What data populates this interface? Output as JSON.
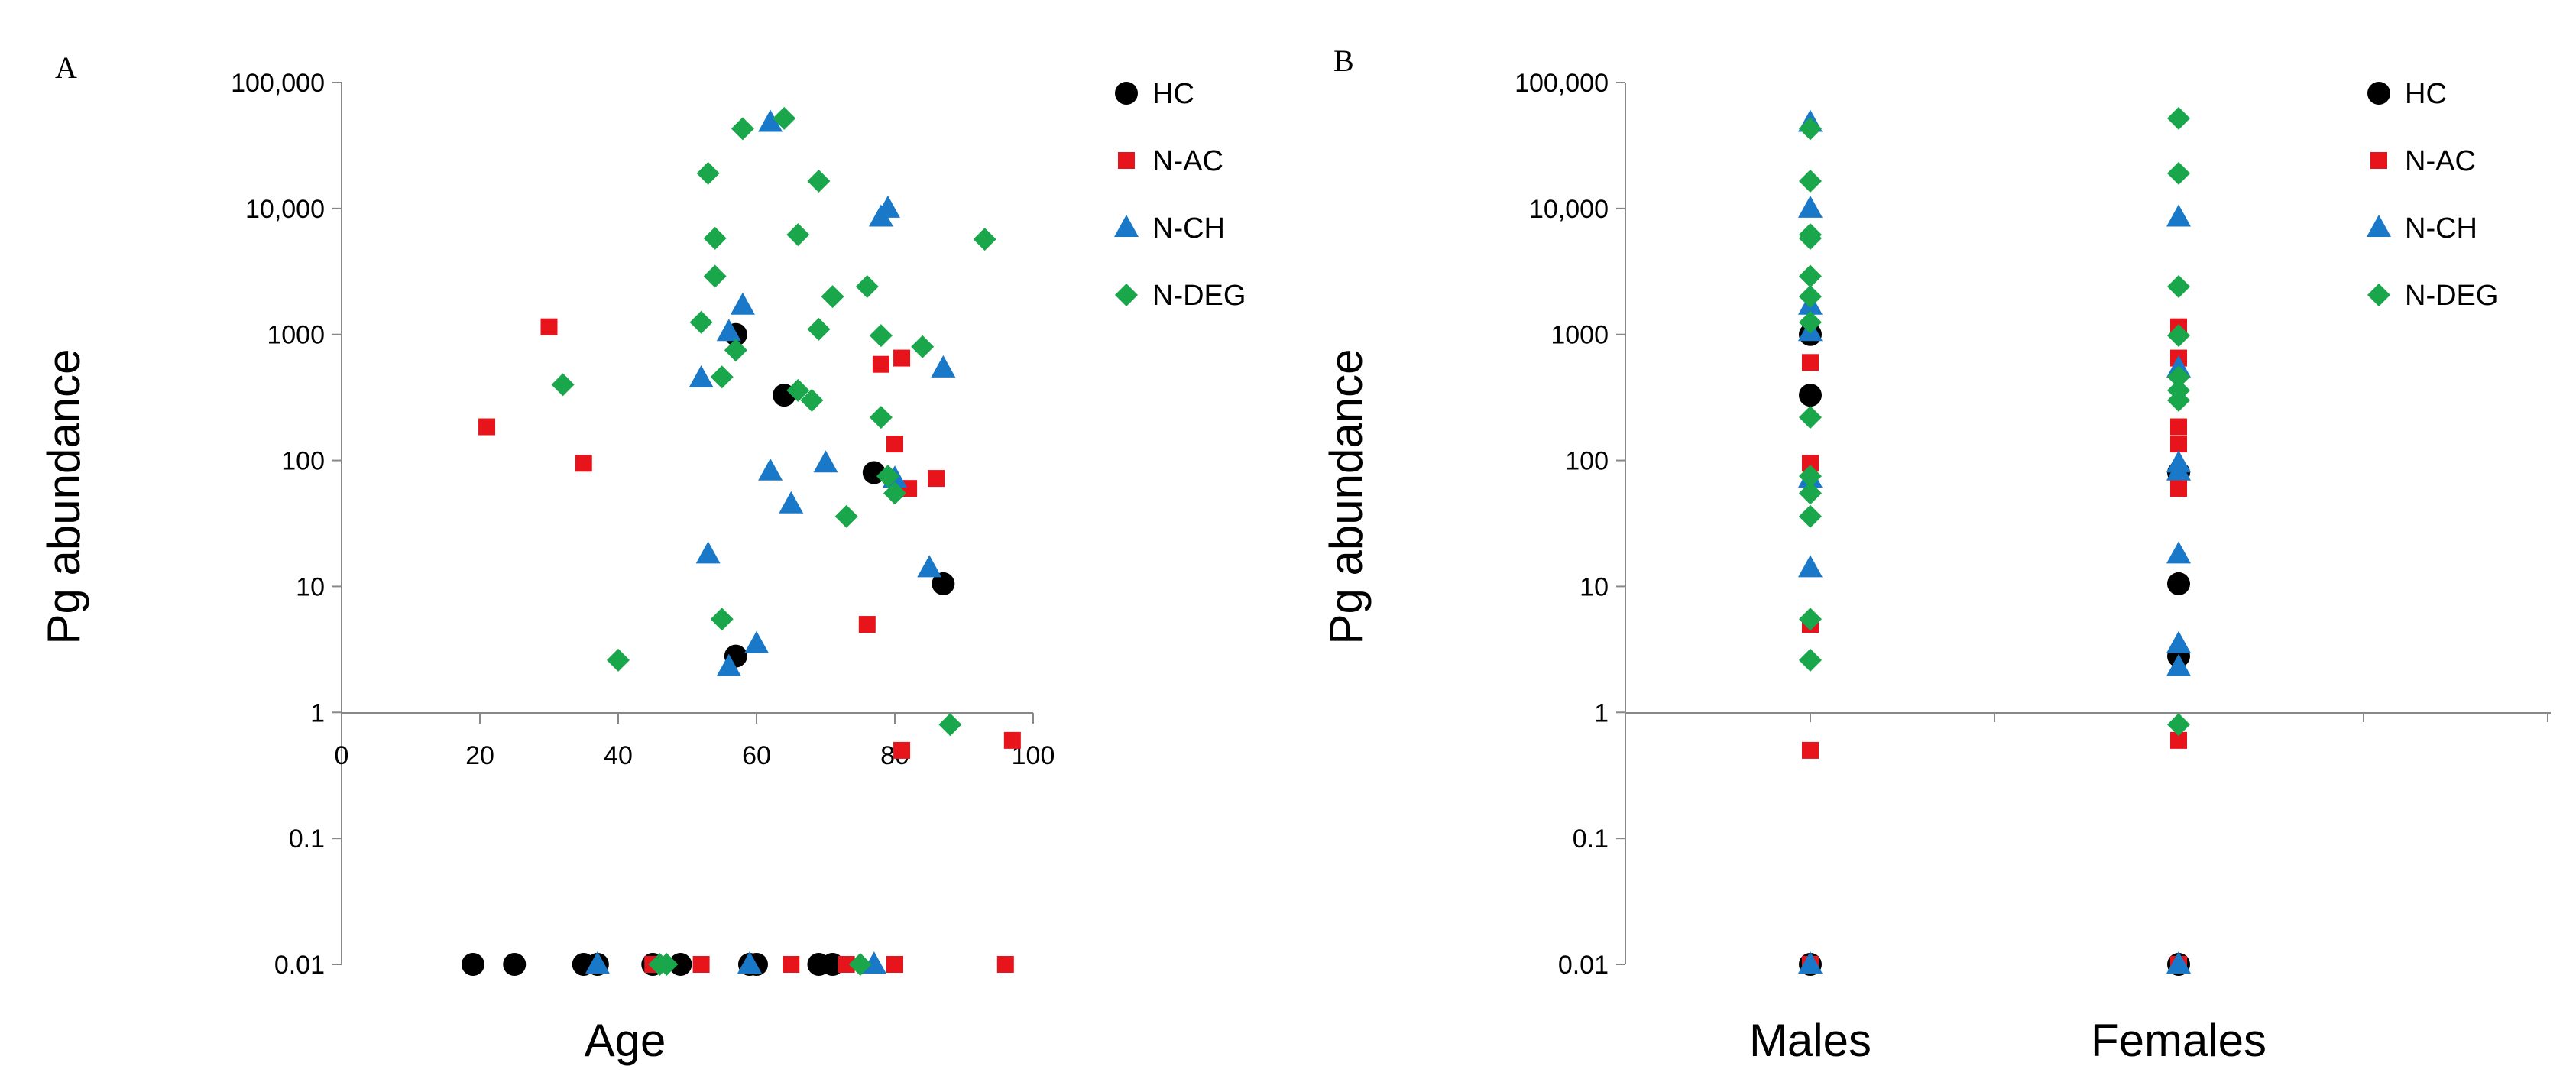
{
  "chart_data": [
    {
      "panel": "A",
      "type": "scatter",
      "xlabel": "Age",
      "ylabel": "Pg abundance",
      "x_ticks": [
        "0",
        "20",
        "40",
        "60",
        "80",
        "100"
      ],
      "y_ticks": [
        "0.01",
        "0.1",
        "1",
        "10",
        "100",
        "1000",
        "10,000",
        "100,000"
      ],
      "xlim": [
        0,
        100
      ],
      "ylim": [
        0.01,
        100000
      ],
      "y_scale": "log",
      "legend_position": "top-right",
      "series": [
        {
          "name": "HC",
          "color": "#000000",
          "marker": "circle",
          "points": [
            [
              57,
              1000
            ],
            [
              64,
              330
            ],
            [
              77,
              80
            ],
            [
              87,
              10.5
            ],
            [
              57,
              2.8
            ],
            [
              19,
              0.01
            ],
            [
              25,
              0.01
            ],
            [
              35,
              0.01
            ],
            [
              37,
              0.01
            ],
            [
              45,
              0.01
            ],
            [
              49,
              0.01
            ],
            [
              59,
              0.01
            ],
            [
              60,
              0.01
            ],
            [
              69,
              0.01
            ],
            [
              71,
              0.01
            ]
          ]
        },
        {
          "name": "N-AC",
          "color": "#e8141c",
          "marker": "square",
          "points": [
            [
              30,
              1150
            ],
            [
              21,
              185
            ],
            [
              35,
              95
            ],
            [
              78,
              580
            ],
            [
              81,
              650
            ],
            [
              80,
              135
            ],
            [
              82,
              60
            ],
            [
              86,
              72
            ],
            [
              76,
              5
            ],
            [
              81,
              0.5
            ],
            [
              97,
              0.6
            ],
            [
              45,
              0.01
            ],
            [
              52,
              0.01
            ],
            [
              65,
              0.01
            ],
            [
              73,
              0.01
            ],
            [
              80,
              0.01
            ],
            [
              96,
              0.01
            ]
          ]
        },
        {
          "name": "N-CH",
          "color": "#1a78c8",
          "marker": "triangle",
          "points": [
            [
              62,
              48000
            ],
            [
              79,
              10000
            ],
            [
              78,
              8500
            ],
            [
              58,
              1700
            ],
            [
              56,
              1050
            ],
            [
              52,
              450
            ],
            [
              87,
              540
            ],
            [
              70,
              95
            ],
            [
              62,
              82
            ],
            [
              80,
              72
            ],
            [
              65,
              45
            ],
            [
              53,
              18
            ],
            [
              85,
              14
            ],
            [
              60,
              3.5
            ],
            [
              56,
              2.3
            ],
            [
              37,
              0.01
            ],
            [
              59,
              0.01
            ],
            [
              77,
              0.01
            ]
          ]
        },
        {
          "name": "N-DEG",
          "color": "#1aa64b",
          "marker": "diamond",
          "points": [
            [
              64,
              52000
            ],
            [
              58,
              43000
            ],
            [
              53,
              19000
            ],
            [
              69,
              16500
            ],
            [
              54,
              5800
            ],
            [
              66,
              6200
            ],
            [
              93,
              5700
            ],
            [
              54,
              2900
            ],
            [
              71,
              2000
            ],
            [
              76,
              2400
            ],
            [
              52,
              1250
            ],
            [
              69,
              1100
            ],
            [
              78,
              980
            ],
            [
              84,
              800
            ],
            [
              57,
              750
            ],
            [
              55,
              460
            ],
            [
              32,
              400
            ],
            [
              66,
              360
            ],
            [
              68,
              300
            ],
            [
              78,
              220
            ],
            [
              79,
              75
            ],
            [
              80,
              55
            ],
            [
              73,
              36
            ],
            [
              55,
              5.5
            ],
            [
              40,
              2.6
            ],
            [
              88,
              0.8
            ],
            [
              46,
              0.01
            ],
            [
              47,
              0.01
            ],
            [
              75,
              0.01
            ]
          ]
        }
      ]
    },
    {
      "panel": "B",
      "type": "scatter",
      "xlabel": "",
      "ylabel": "Pg abundance",
      "categories": [
        "Males",
        "Females"
      ],
      "y_ticks": [
        "0.01",
        "0.1",
        "1",
        "10",
        "100",
        "1000",
        "10,000",
        "100,000"
      ],
      "ylim": [
        0.01,
        100000
      ],
      "y_scale": "log",
      "legend_position": "top-right",
      "series": [
        {
          "name": "HC",
          "color": "#000000",
          "marker": "circle",
          "points": [
            [
              "Males",
              1000
            ],
            [
              "Males",
              330
            ],
            [
              "Males",
              0.01
            ],
            [
              "Females",
              80
            ],
            [
              "Females",
              10.5
            ],
            [
              "Females",
              2.8
            ],
            [
              "Females",
              0.01
            ]
          ]
        },
        {
          "name": "N-AC",
          "color": "#e8141c",
          "marker": "square",
          "points": [
            [
              "Males",
              600
            ],
            [
              "Males",
              95
            ],
            [
              "Males",
              5
            ],
            [
              "Males",
              0.5
            ],
            [
              "Males",
              0.01
            ],
            [
              "Females",
              1150
            ],
            [
              "Females",
              650
            ],
            [
              "Females",
              185
            ],
            [
              "Females",
              135
            ],
            [
              "Females",
              60
            ],
            [
              "Females",
              0.6
            ],
            [
              "Females",
              0.01
            ]
          ]
        },
        {
          "name": "N-CH",
          "color": "#1a78c8",
          "marker": "triangle",
          "points": [
            [
              "Males",
              48000
            ],
            [
              "Males",
              10000
            ],
            [
              "Males",
              1700
            ],
            [
              "Males",
              1050
            ],
            [
              "Males",
              72
            ],
            [
              "Males",
              14
            ],
            [
              "Males",
              0.01
            ],
            [
              "Females",
              8500
            ],
            [
              "Females",
              540
            ],
            [
              "Females",
              95
            ],
            [
              "Females",
              82
            ],
            [
              "Females",
              18
            ],
            [
              "Females",
              3.5
            ],
            [
              "Females",
              2.3
            ],
            [
              "Females",
              0.01
            ]
          ]
        },
        {
          "name": "N-DEG",
          "color": "#1aa64b",
          "marker": "diamond",
          "points": [
            [
              "Males",
              43000
            ],
            [
              "Males",
              16500
            ],
            [
              "Males",
              6200
            ],
            [
              "Males",
              5800
            ],
            [
              "Males",
              2900
            ],
            [
              "Males",
              2000
            ],
            [
              "Males",
              1250
            ],
            [
              "Males",
              220
            ],
            [
              "Males",
              75
            ],
            [
              "Males",
              55
            ],
            [
              "Males",
              36
            ],
            [
              "Males",
              5.5
            ],
            [
              "Males",
              2.6
            ],
            [
              "Females",
              52000
            ],
            [
              "Females",
              19000
            ],
            [
              "Females",
              2400
            ],
            [
              "Females",
              980
            ],
            [
              "Females",
              460
            ],
            [
              "Females",
              360
            ],
            [
              "Females",
              300
            ],
            [
              "Females",
              0.8
            ]
          ]
        }
      ]
    }
  ]
}
